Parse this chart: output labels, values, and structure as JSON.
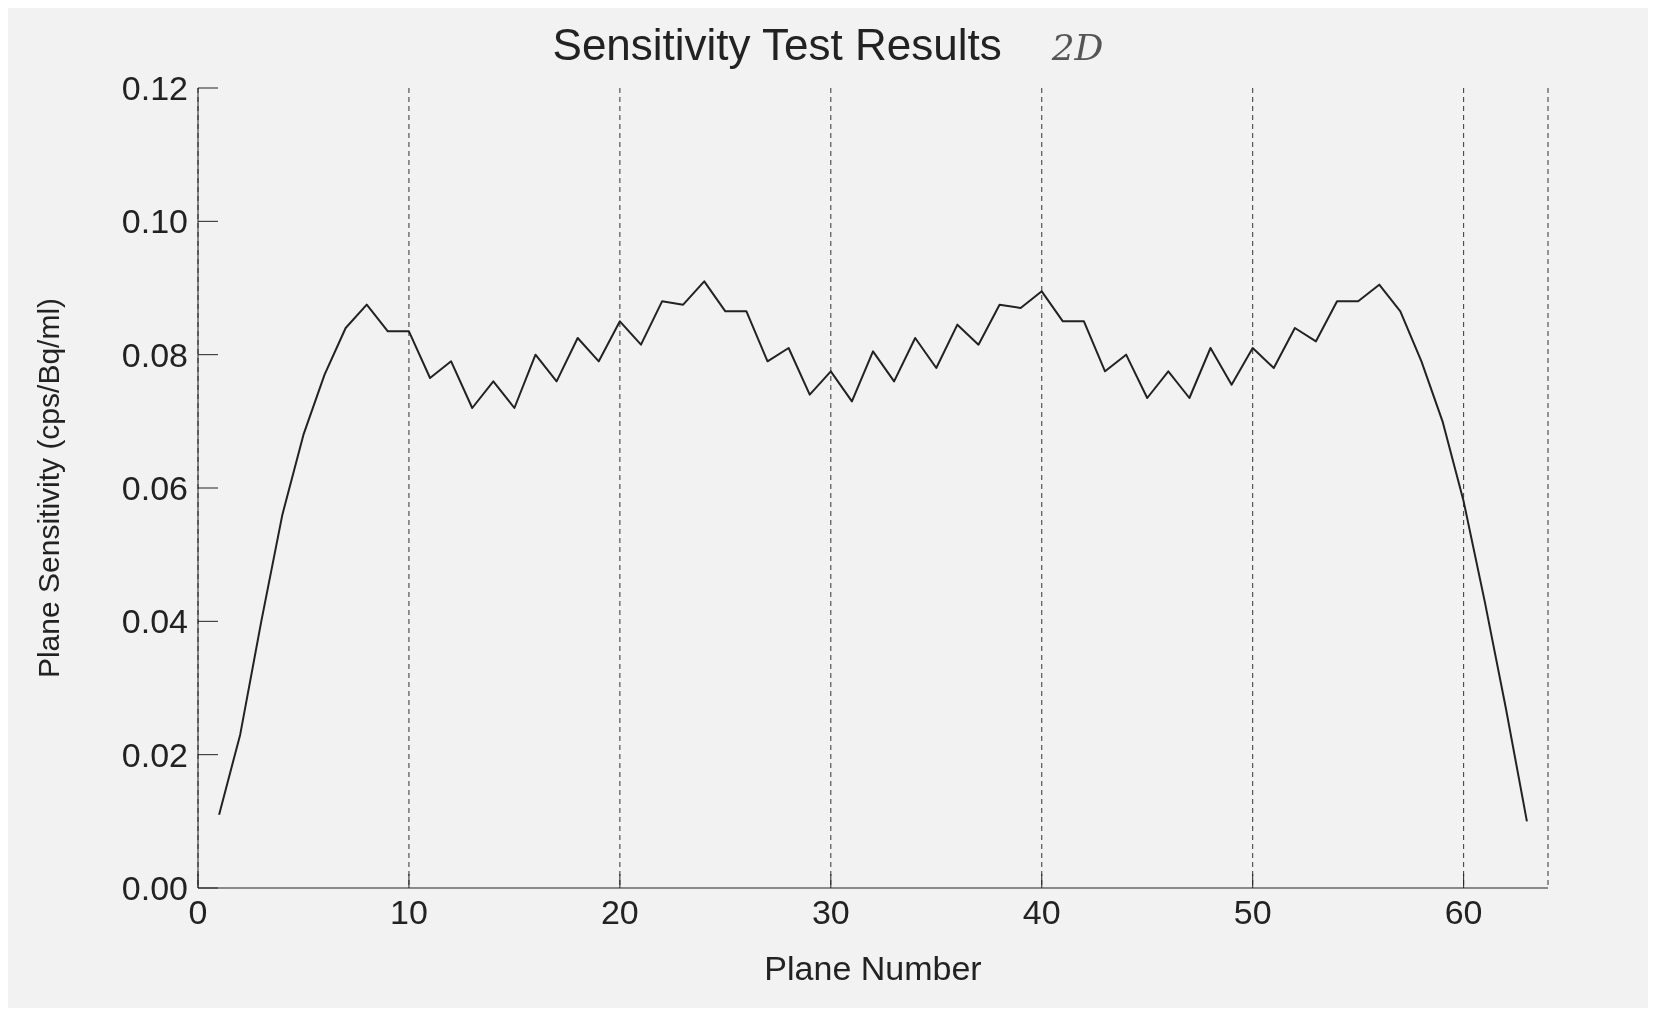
{
  "chart_data": {
    "type": "line",
    "title": "Sensitivity Test Results",
    "xlabel": "Plane Number",
    "ylabel": "Plane Sensitivity (cps/Bq/ml)",
    "annotations": [
      "2D"
    ],
    "x": [
      1,
      2,
      3,
      4,
      5,
      6,
      7,
      8,
      9,
      10,
      11,
      12,
      13,
      14,
      15,
      16,
      17,
      18,
      19,
      20,
      21,
      22,
      23,
      24,
      25,
      26,
      27,
      28,
      29,
      30,
      31,
      32,
      33,
      34,
      35,
      36,
      37,
      38,
      39,
      40,
      41,
      42,
      43,
      44,
      45,
      46,
      47,
      48,
      49,
      50,
      51,
      52,
      53,
      54,
      55,
      56,
      57,
      58,
      59,
      60,
      61,
      62,
      63
    ],
    "series": [
      {
        "color": "#222222",
        "values": [
          0.011,
          0.023,
          0.04,
          0.056,
          0.068,
          0.077,
          0.084,
          0.0875,
          0.0835,
          0.0835,
          0.0765,
          0.079,
          0.072,
          0.076,
          0.072,
          0.08,
          0.076,
          0.0825,
          0.079,
          0.085,
          0.0815,
          0.088,
          0.0875,
          0.091,
          0.0865,
          0.0865,
          0.079,
          0.081,
          0.074,
          0.0775,
          0.073,
          0.0805,
          0.076,
          0.0825,
          0.078,
          0.0845,
          0.0815,
          0.0875,
          0.087,
          0.0895,
          0.085,
          0.085,
          0.0775,
          0.08,
          0.0735,
          0.0775,
          0.0735,
          0.081,
          0.0755,
          0.081,
          0.078,
          0.084,
          0.082,
          0.088,
          0.088,
          0.0905,
          0.0865,
          0.079,
          0.07,
          0.058,
          0.043,
          0.027,
          0.01
        ]
      }
    ],
    "xlim": [
      0,
      64
    ],
    "xticks": [
      0,
      10,
      20,
      30,
      40,
      50,
      60
    ],
    "ylim": [
      0,
      0.12
    ],
    "yticks": [
      {
        "value": 0,
        "label": "0.00"
      },
      {
        "value": 0.02,
        "label": "0.02"
      },
      {
        "value": 0.04,
        "label": "0.04"
      },
      {
        "value": 0.06,
        "label": "0.06"
      },
      {
        "value": 0.08,
        "label": "0.08"
      },
      {
        "value": 0.1,
        "label": "0.10"
      },
      {
        "value": 0.12,
        "label": "0.12"
      }
    ],
    "grid": "x",
    "line_style": "solid",
    "marker": "none"
  }
}
